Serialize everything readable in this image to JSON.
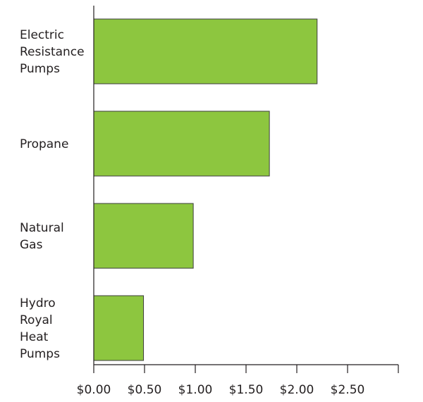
{
  "chart_data": {
    "type": "bar",
    "orientation": "horizontal",
    "categories": [
      [
        "Electric",
        "Resistance",
        "Pumps"
      ],
      [
        "Propane"
      ],
      [
        "Natural",
        "Gas"
      ],
      [
        "Hydro",
        "Royal",
        "Heat",
        "Pumps"
      ]
    ],
    "values": [
      2.2,
      1.73,
      0.98,
      0.49
    ],
    "xlim": [
      0,
      3.0
    ],
    "xticks": [
      0,
      0.5,
      1.0,
      1.5,
      2.0,
      2.5,
      3.0
    ],
    "xtick_labels": [
      "$0.00",
      "$0.50",
      "$1.00",
      "$1.50",
      "$2.00",
      "$2.50",
      ""
    ],
    "title": "",
    "xlabel": "",
    "ylabel": "",
    "grid": false,
    "legend": "none",
    "colors": {
      "bar_fill": "#8dc63f",
      "bar_stroke": "#3c3c3c",
      "axis": "#231f20",
      "text": "#231f20"
    }
  }
}
